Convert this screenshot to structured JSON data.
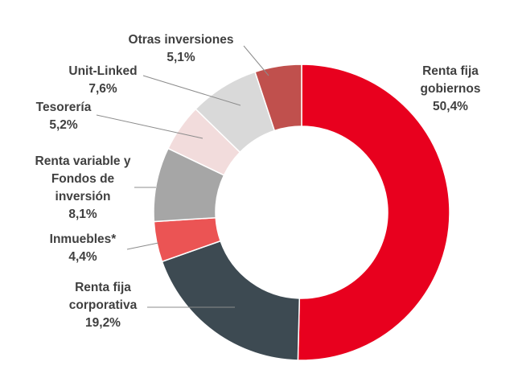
{
  "chart_data": {
    "type": "pie",
    "variant": "donut",
    "title": "",
    "slices": [
      {
        "name": "Renta fija gobiernos",
        "value": 50.4,
        "value_label": "50,4%",
        "color": "#e8001e",
        "label_lines": [
          "Renta fija",
          "gobiernos",
          "50,4%"
        ]
      },
      {
        "name": "Renta fija corporativa",
        "value": 19.2,
        "value_label": "19,2%",
        "color": "#3d4a52",
        "label_lines": [
          "Renta fija",
          "corporativa",
          "19,2%"
        ]
      },
      {
        "name": "Inmuebles*",
        "value": 4.4,
        "value_label": "4,4%",
        "color": "#eb5454",
        "label_lines": [
          "Inmuebles*",
          "4,4%"
        ]
      },
      {
        "name": "Renta variable y Fondos de inversión",
        "value": 8.1,
        "value_label": "8,1%",
        "color": "#a6a6a6",
        "label_lines": [
          "Renta variable y",
          "Fondos de",
          "inversión",
          "8,1%"
        ]
      },
      {
        "name": "Tesorería",
        "value": 5.2,
        "value_label": "5,2%",
        "color": "#f2dcdc",
        "label_lines": [
          "Tesorería",
          "5,2%"
        ]
      },
      {
        "name": "Unit-Linked",
        "value": 7.6,
        "value_label": "7,6%",
        "color": "#d9d9d9",
        "label_lines": [
          "Unit-Linked",
          "7,6%"
        ]
      },
      {
        "name": "Otras inversiones",
        "value": 5.1,
        "value_label": "5,1%",
        "color": "#c0504d",
        "label_lines": [
          "Otras inversiones",
          "5,1%"
        ]
      }
    ],
    "start_angle_deg": 0,
    "direction": "clockwise",
    "legend": "none"
  }
}
